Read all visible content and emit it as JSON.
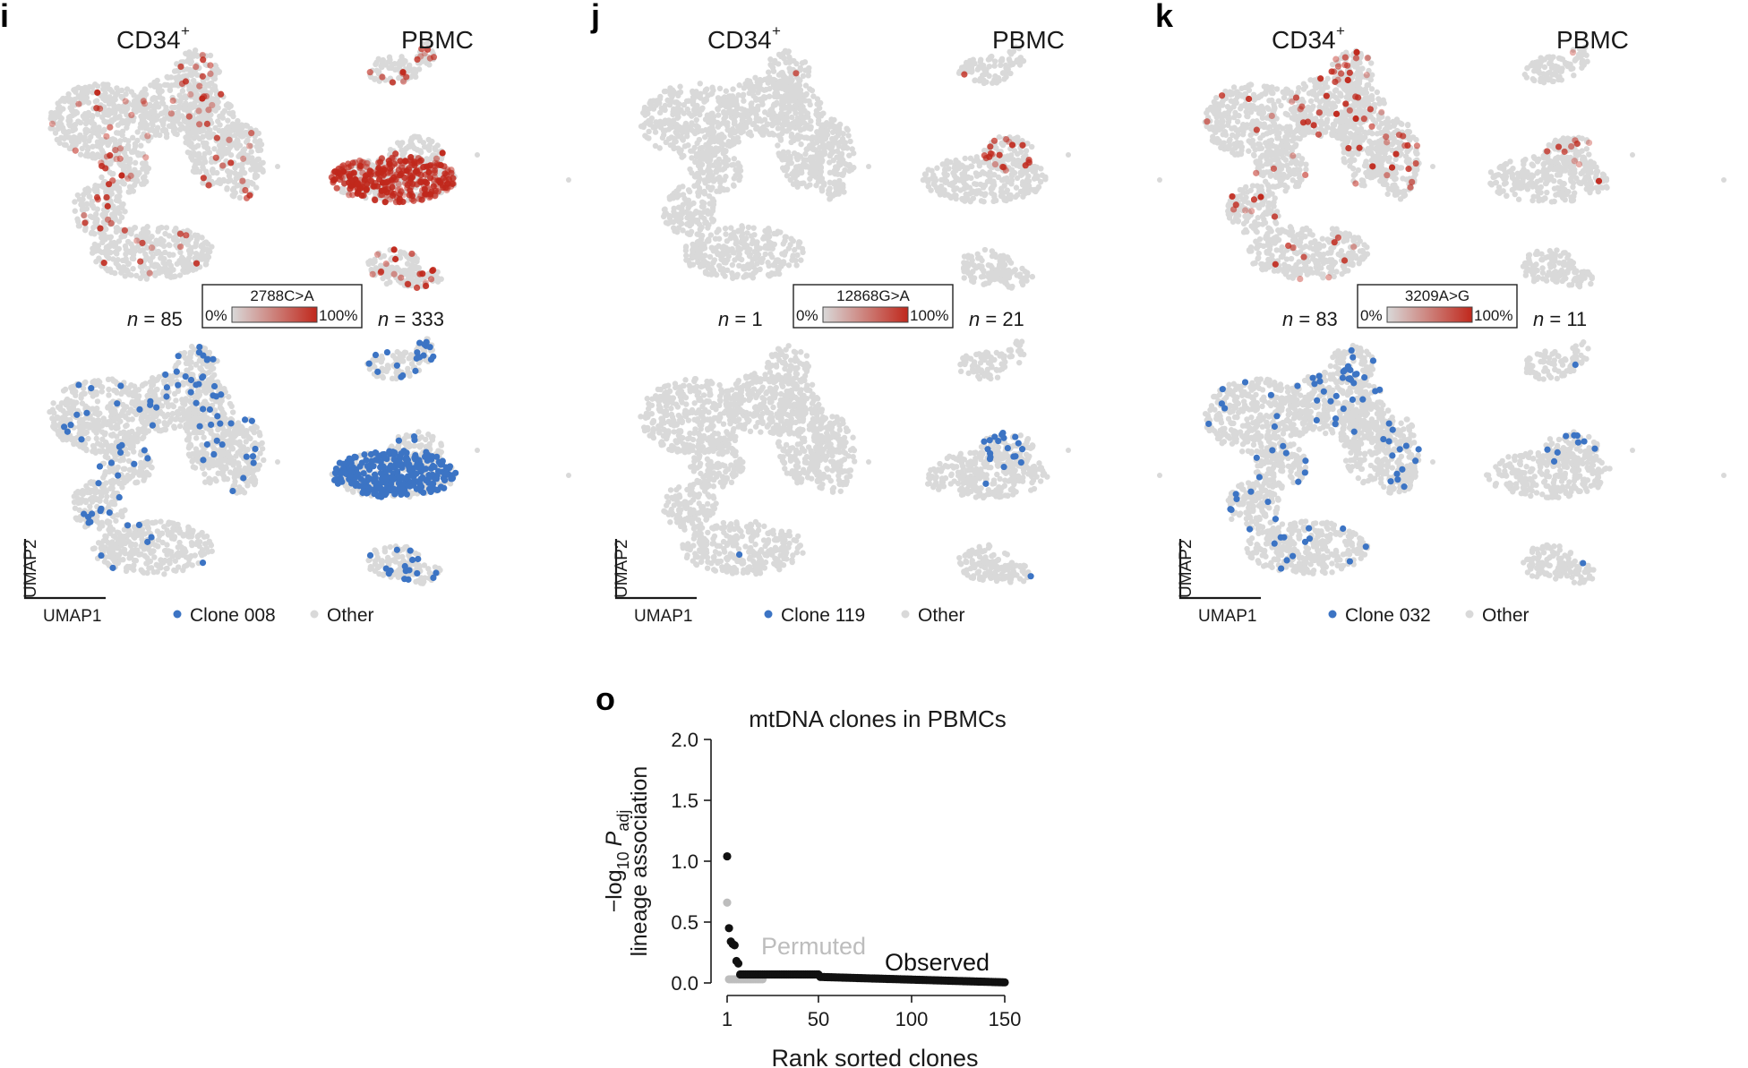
{
  "colors": {
    "other": "#d9d9d9",
    "mutation": "#c0281c",
    "clone": "#3c74c4",
    "observed": "#111111",
    "permuted": "#bdbdbd"
  },
  "panels": [
    {
      "letter": "i",
      "cd34_title": "CD34",
      "cd34_sup": "+",
      "pbmc_title": "PBMC",
      "variant": "2788C>A",
      "cbar_min": "0%",
      "cbar_max": "100%",
      "n_cd34_prefix": "n",
      "n_cd34_value": " = 85",
      "n_pbmc_prefix": "n",
      "n_pbmc_value": " = 333",
      "clone_label": "Clone 008",
      "other_label": "Other",
      "axis_x": "UMAP1",
      "axis_y": "UMAP2",
      "counts": {
        "cd34": 85,
        "pbmc": 333
      }
    },
    {
      "letter": "j",
      "cd34_title": "CD34",
      "cd34_sup": "+",
      "pbmc_title": "PBMC",
      "variant": "12868G>A",
      "cbar_min": "0%",
      "cbar_max": "100%",
      "n_cd34_prefix": "n",
      "n_cd34_value": " = 1",
      "n_pbmc_prefix": "n",
      "n_pbmc_value": " = 21",
      "clone_label": "Clone 119",
      "other_label": "Other",
      "axis_x": "UMAP1",
      "axis_y": "UMAP2",
      "counts": {
        "cd34": 1,
        "pbmc": 21
      }
    },
    {
      "letter": "k",
      "cd34_title": "CD34",
      "cd34_sup": "+",
      "pbmc_title": "PBMC",
      "variant": "3209A>G",
      "cbar_min": "0%",
      "cbar_max": "100%",
      "n_cd34_prefix": "n",
      "n_cd34_value": " = 83",
      "n_pbmc_prefix": "n",
      "n_pbmc_value": " = 11",
      "clone_label": "Clone 032",
      "other_label": "Other",
      "axis_x": "UMAP1",
      "axis_y": "UMAP2",
      "counts": {
        "cd34": 83,
        "pbmc": 11
      }
    }
  ],
  "chart_data": {
    "panel_letter": "o",
    "type": "scatter",
    "title": "mtDNA clones in PBMCs",
    "xlabel": "Rank sorted clones",
    "ylabel_line1": "lineage association",
    "ylabel_prefix": "−log",
    "ylabel_sub10": "10",
    "ylabel_P": "P",
    "ylabel_subadj": "adj",
    "xlim": [
      1,
      150
    ],
    "ylim": [
      0,
      2.0
    ],
    "xticks": [
      "1",
      "50",
      "100",
      "150"
    ],
    "xtick_values": [
      1,
      50,
      100,
      150
    ],
    "yticks": [
      "0.0",
      "0.5",
      "1.0",
      "1.5",
      "2.0"
    ],
    "ytick_values": [
      0,
      0.5,
      1.0,
      1.5,
      2.0
    ],
    "annotation_permuted": "Permuted",
    "annotation_observed": "Observed",
    "series": [
      {
        "name": "Observed",
        "head": [
          1.04,
          0.45,
          0.34,
          0.32,
          0.31,
          0.18,
          0.16
        ],
        "plateau_value": 0.07,
        "plateau_end_rank": 50,
        "tail_start_value": 0.05,
        "tail_end_value": 0.005,
        "n": 150
      },
      {
        "name": "Permuted",
        "head": [
          0.66
        ],
        "plateau_value": 0.03,
        "n": 20
      }
    ]
  }
}
